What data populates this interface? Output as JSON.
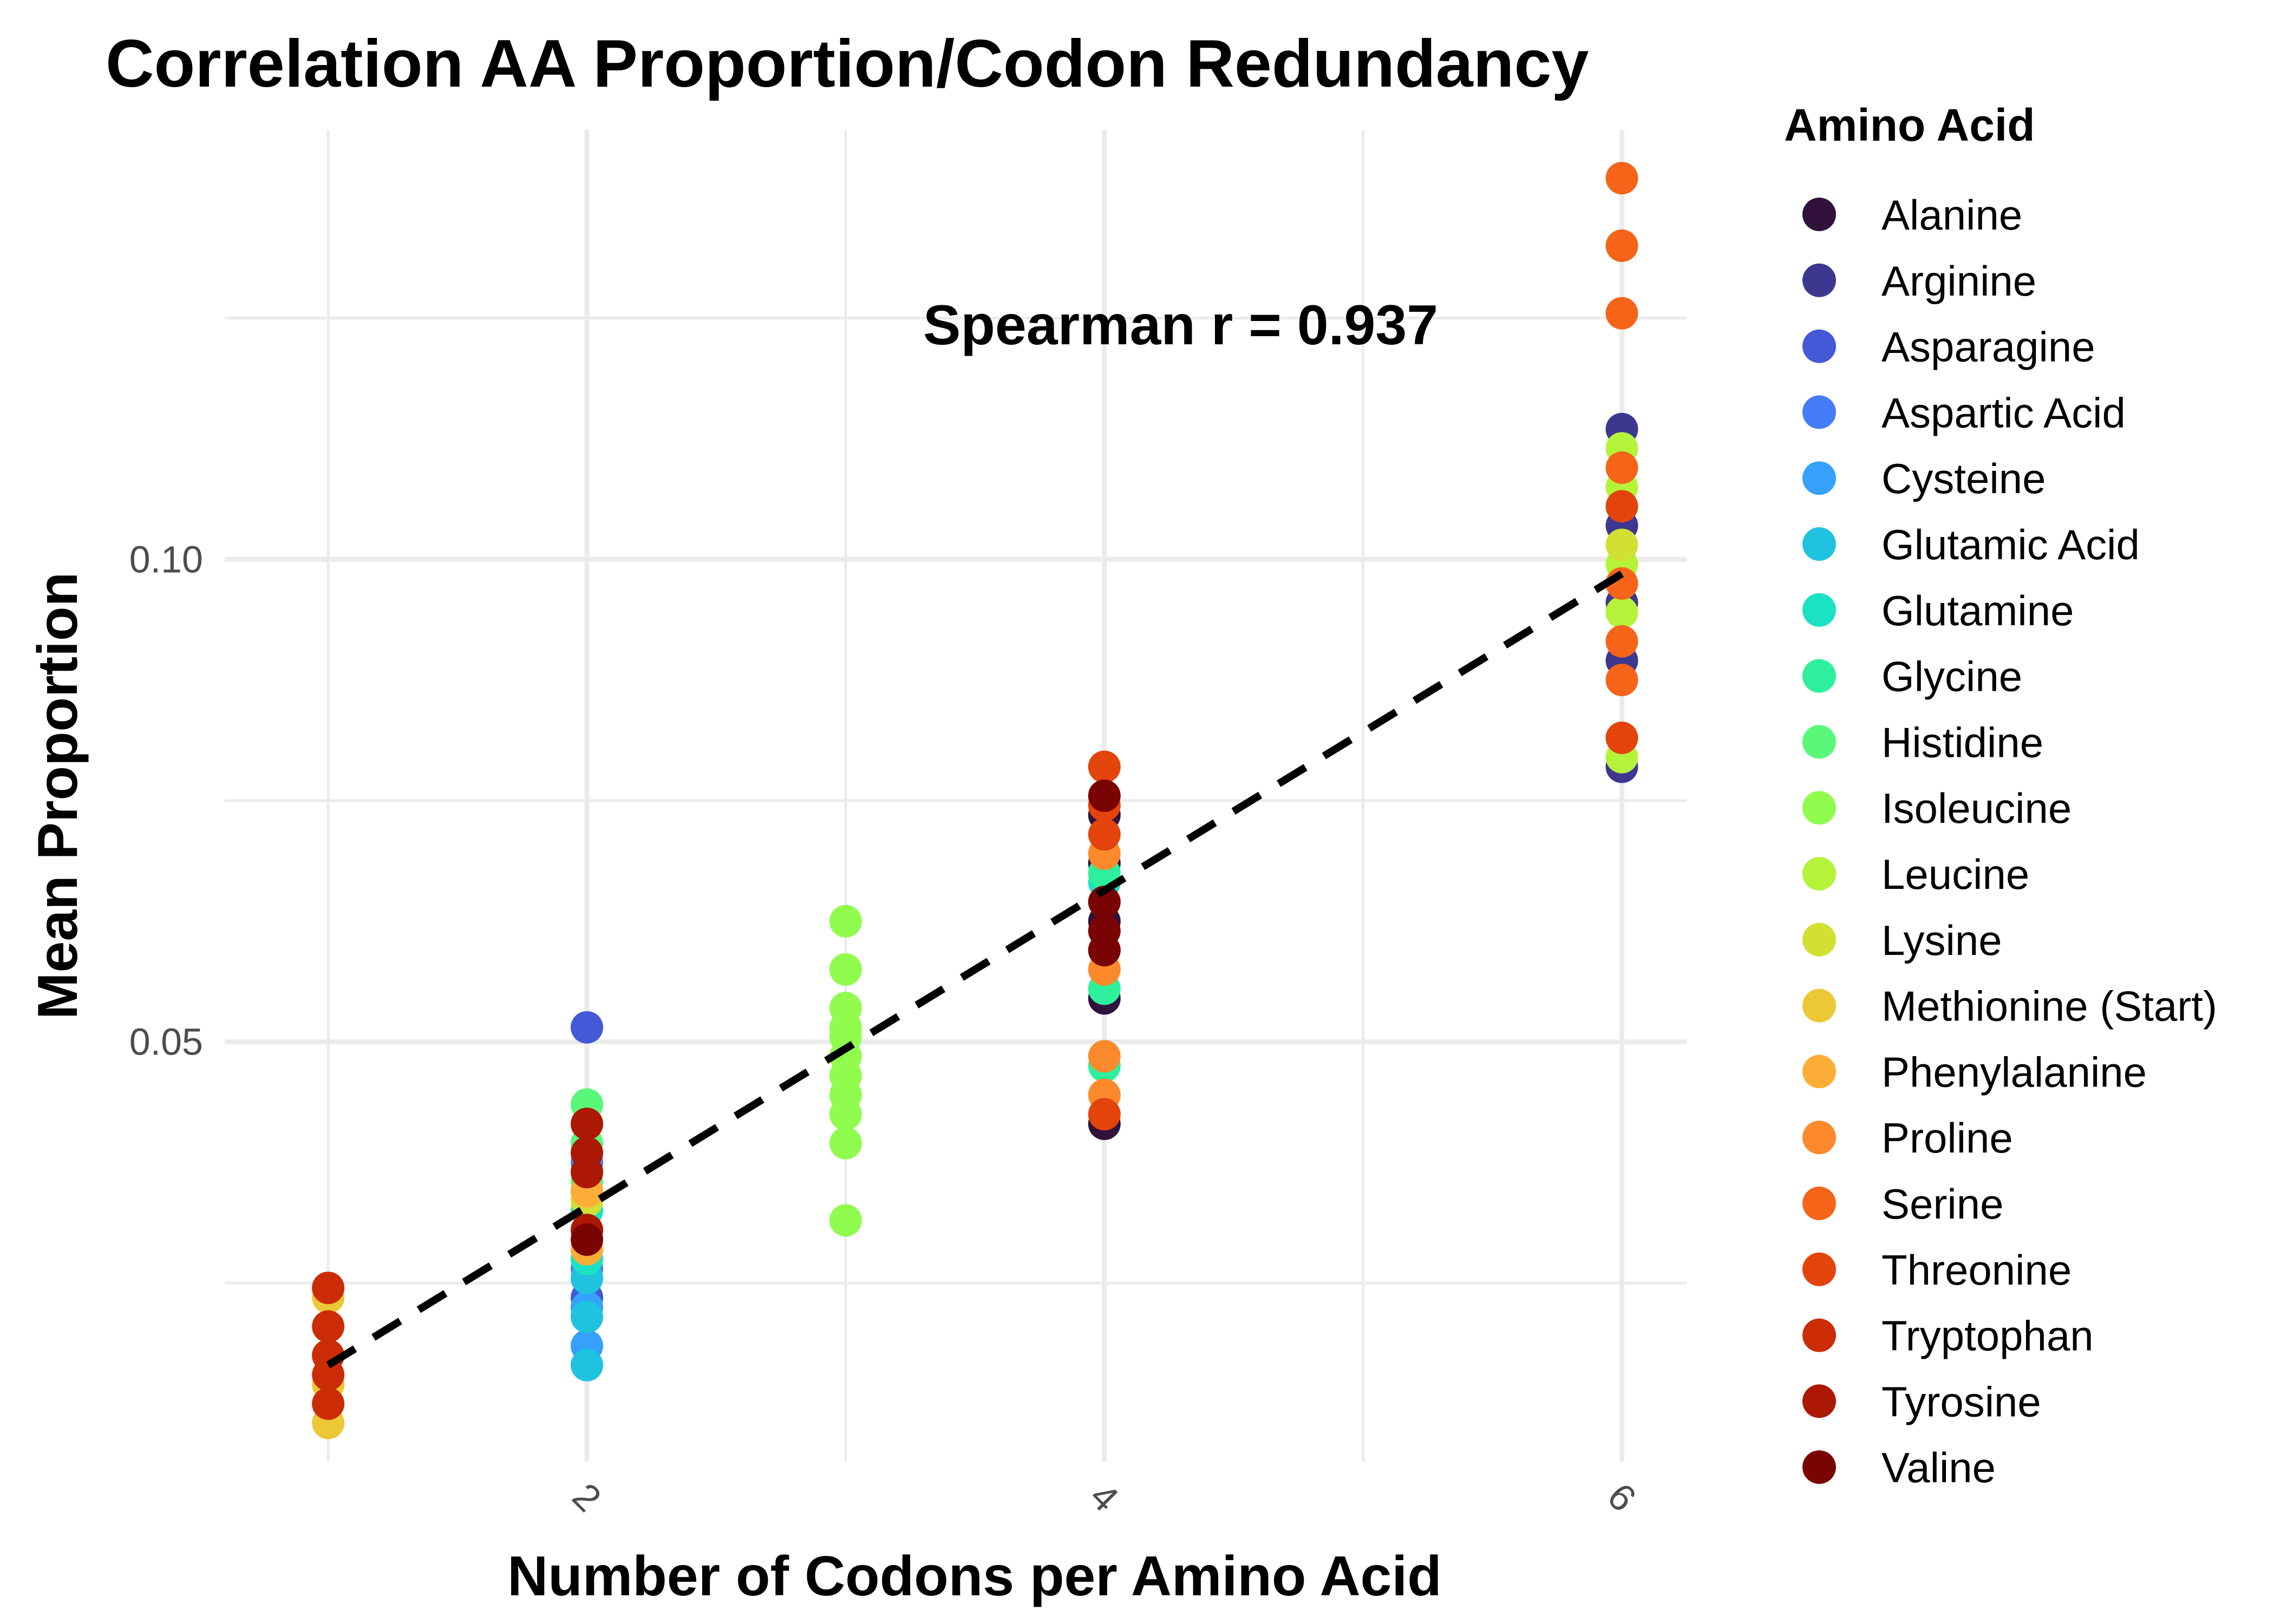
{
  "chart_data": {
    "type": "scatter",
    "title": "Correlation AA Proportion/Codon Redundancy",
    "xlabel": "Number of Codons per Amino Acid",
    "ylabel": "Mean Proportion",
    "xlim": [
      0.6,
      6.25
    ],
    "ylim": [
      0.0065,
      0.1445
    ],
    "x_ticks": [
      2,
      4,
      6
    ],
    "x_tick_labels": [
      "2",
      "4",
      "6"
    ],
    "y_ticks": [
      0.05,
      0.1
    ],
    "y_tick_labels": [
      "0.05",
      "0.10"
    ],
    "y_minor_ticks": [
      0.025,
      0.075,
      0.125
    ],
    "x_minor_ticks": [
      1,
      3,
      5
    ],
    "grid": true,
    "annotation": "Spearman r = 0.937",
    "trend_line": {
      "style": "dashed",
      "color": "#000000",
      "x": [
        1,
        6
      ],
      "y": [
        0.0165,
        0.0985
      ]
    },
    "legend": {
      "title": "Amino Acid",
      "position": "right",
      "entries": [
        {
          "name": "Alanine",
          "color": "#30123b"
        },
        {
          "name": "Arginine",
          "color": "#3e378f"
        },
        {
          "name": "Asparagine",
          "color": "#4458d8"
        },
        {
          "name": "Aspartic Acid",
          "color": "#447cf9"
        },
        {
          "name": "Cysteine",
          "color": "#35a1fc"
        },
        {
          "name": "Glutamic Acid",
          "color": "#1fc3e0"
        },
        {
          "name": "Glutamine",
          "color": "#1be2c2"
        },
        {
          "name": "Glycine",
          "color": "#2ef09c"
        },
        {
          "name": "Histidine",
          "color": "#59f87a"
        },
        {
          "name": "Isoleucine",
          "color": "#8ffc4e"
        },
        {
          "name": "Leucine",
          "color": "#b4f33a"
        },
        {
          "name": "Lysine",
          "color": "#d2e034"
        },
        {
          "name": "Methionine (Start)",
          "color": "#ecc836"
        },
        {
          "name": "Phenylalanine",
          "color": "#fcad37"
        },
        {
          "name": "Proline",
          "color": "#fc8a2c"
        },
        {
          "name": "Serine",
          "color": "#f56419"
        },
        {
          "name": "Threonine",
          "color": "#e2440c"
        },
        {
          "name": "Tryptophan",
          "color": "#cc2c05"
        },
        {
          "name": "Tyrosine",
          "color": "#ab1803"
        },
        {
          "name": "Valine",
          "color": "#7a0403"
        }
      ]
    },
    "series": [
      {
        "name": "Alanine",
        "points": [
          [
            4,
            0.0415
          ],
          [
            4,
            0.0545
          ],
          [
            4,
            0.0625
          ],
          [
            4,
            0.0685
          ],
          [
            4,
            0.0735
          ]
        ]
      },
      {
        "name": "Arginine",
        "points": [
          [
            6,
            0.0785
          ],
          [
            6,
            0.0895
          ],
          [
            6,
            0.0955
          ],
          [
            6,
            0.1035
          ],
          [
            6,
            0.1135
          ]
        ]
      },
      {
        "name": "Asparagine",
        "points": [
          [
            2,
            0.0515
          ],
          [
            2,
            0.0235
          ],
          [
            2,
            0.0345
          ]
        ]
      },
      {
        "name": "Aspartic Acid",
        "points": [
          [
            2,
            0.0265
          ],
          [
            2,
            0.0305
          ],
          [
            2,
            0.0375
          ]
        ]
      },
      {
        "name": "Cysteine",
        "points": [
          [
            2,
            0.0185
          ],
          [
            2,
            0.0225
          ],
          [
            2,
            0.0285
          ]
        ]
      },
      {
        "name": "Glutamic Acid",
        "points": [
          [
            2,
            0.0165
          ],
          [
            2,
            0.0215
          ],
          [
            2,
            0.0255
          ]
        ]
      },
      {
        "name": "Glutamine",
        "points": [
          [
            2,
            0.0275
          ],
          [
            2,
            0.0325
          ],
          [
            4,
            0.0665
          ]
        ]
      },
      {
        "name": "Glycine",
        "points": [
          [
            4,
            0.0475
          ],
          [
            4,
            0.0555
          ],
          [
            4,
            0.0675
          ]
        ]
      },
      {
        "name": "Histidine",
        "points": [
          [
            2,
            0.0435
          ],
          [
            2,
            0.0355
          ],
          [
            2,
            0.0395
          ]
        ]
      },
      {
        "name": "Isoleucine",
        "points": [
          [
            3,
            0.0315
          ],
          [
            3,
            0.0395
          ],
          [
            3,
            0.0425
          ],
          [
            3,
            0.0445
          ],
          [
            3,
            0.0465
          ],
          [
            3,
            0.0485
          ],
          [
            3,
            0.0505
          ],
          [
            3,
            0.0515
          ],
          [
            3,
            0.0535
          ],
          [
            3,
            0.0575
          ],
          [
            3,
            0.0625
          ]
        ]
      },
      {
        "name": "Leucine",
        "points": [
          [
            6,
            0.0795
          ],
          [
            6,
            0.0945
          ],
          [
            6,
            0.0995
          ],
          [
            6,
            0.1075
          ],
          [
            6,
            0.1115
          ]
        ]
      },
      {
        "name": "Lysine",
        "points": [
          [
            2,
            0.0305
          ],
          [
            2,
            0.0335
          ],
          [
            6,
            0.1015
          ]
        ]
      },
      {
        "name": "Methionine (Start)",
        "points": [
          [
            1,
            0.0105
          ],
          [
            1,
            0.0125
          ],
          [
            1,
            0.0145
          ],
          [
            1,
            0.0175
          ],
          [
            1,
            0.0235
          ]
        ]
      },
      {
        "name": "Phenylalanine",
        "points": [
          [
            2,
            0.0285
          ],
          [
            2,
            0.0345
          ],
          [
            2,
            0.0365
          ]
        ]
      },
      {
        "name": "Proline",
        "points": [
          [
            4,
            0.0445
          ],
          [
            4,
            0.0485
          ],
          [
            4,
            0.0575
          ],
          [
            4,
            0.0645
          ],
          [
            4,
            0.0695
          ]
        ]
      },
      {
        "name": "Serine",
        "points": [
          [
            6,
            0.0875
          ],
          [
            6,
            0.0915
          ],
          [
            6,
            0.0975
          ],
          [
            6,
            0.1095
          ],
          [
            6,
            0.1255
          ],
          [
            6,
            0.1325
          ],
          [
            6,
            0.1395
          ]
        ]
      },
      {
        "name": "Threonine",
        "points": [
          [
            4,
            0.0425
          ],
          [
            4,
            0.0595
          ],
          [
            4,
            0.0715
          ],
          [
            4,
            0.0745
          ],
          [
            4,
            0.0785
          ],
          [
            6,
            0.0815
          ],
          [
            6,
            0.1055
          ]
        ]
      },
      {
        "name": "Tryptophan",
        "points": [
          [
            1,
            0.0125
          ],
          [
            1,
            0.0155
          ],
          [
            1,
            0.0175
          ],
          [
            1,
            0.0205
          ],
          [
            1,
            0.0245
          ]
        ]
      },
      {
        "name": "Tyrosine",
        "points": [
          [
            2,
            0.0305
          ],
          [
            2,
            0.0365
          ],
          [
            2,
            0.0385
          ],
          [
            2,
            0.0415
          ]
        ]
      },
      {
        "name": "Valine",
        "points": [
          [
            2,
            0.0295
          ],
          [
            4,
            0.0595
          ],
          [
            4,
            0.0615
          ],
          [
            4,
            0.0645
          ],
          [
            4,
            0.0755
          ]
        ]
      }
    ]
  }
}
